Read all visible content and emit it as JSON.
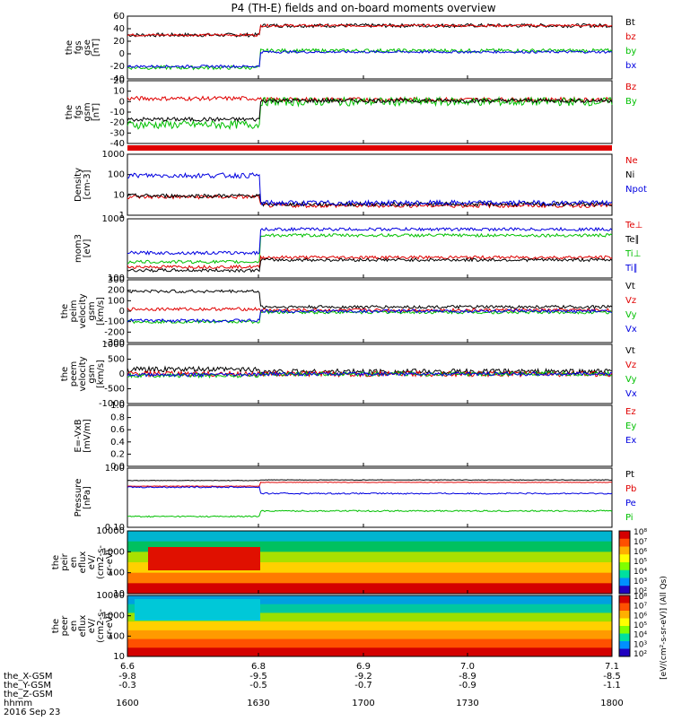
{
  "chart_data": {
    "type": "line",
    "title": "P4 (TH-E) fields and on-board moments overview",
    "panels": [
      {
        "id": "fgs1",
        "ylabel": [
          "the",
          "fgs",
          "gse",
          "[nT]"
        ],
        "yticks": [
          "60",
          "40",
          "20",
          "0",
          "-20",
          "-40"
        ],
        "yrange": [
          -40,
          60
        ],
        "kind": "line",
        "series": [
          {
            "name": "Bt",
            "color": "#000000",
            "base": 45,
            "pre": 30,
            "amp": 3
          },
          {
            "name": "bz",
            "color": "#e00000",
            "base": 45,
            "pre": 30,
            "amp": 2
          },
          {
            "name": "by",
            "color": "#00c000",
            "base": 5,
            "pre": -22,
            "amp": 3
          },
          {
            "name": "bx",
            "color": "#0000e0",
            "base": 3,
            "pre": -20,
            "amp": 2
          }
        ]
      },
      {
        "id": "fgs2",
        "ylabel": [
          "the",
          "fgs",
          "gsm",
          "[nT]"
        ],
        "yticks": [
          "20",
          "10",
          "0",
          "-10",
          "-20",
          "-30",
          "-40"
        ],
        "yrange": [
          -40,
          20
        ],
        "kind": "line",
        "series": [
          {
            "name": "Bz",
            "color": "#e00000",
            "base": 2,
            "pre": 3,
            "amp": 2
          },
          {
            "name": "By",
            "color": "#00c000",
            "base": 0,
            "pre": -22,
            "amp": 4
          },
          {
            "name": "",
            "color": "#000000",
            "base": 1,
            "pre": -17,
            "amp": 2
          }
        ]
      },
      {
        "id": "dens",
        "ylabel": [
          "Density",
          "[cm-3]"
        ],
        "yticks": [
          "1000",
          "100",
          "10",
          "1"
        ],
        "yrange": [
          1,
          1000
        ],
        "log": true,
        "kind": "line",
        "series": [
          {
            "name": "Ne",
            "color": "#e00000",
            "base": 3,
            "pre": 8,
            "amp": 0.2
          },
          {
            "name": "Ni",
            "color": "#000000",
            "base": 3.5,
            "pre": 9,
            "amp": 0.2
          },
          {
            "name": "Npot",
            "color": "#0000e0",
            "base": 4,
            "pre": 90,
            "amp": 0.25
          }
        ]
      },
      {
        "id": "temp",
        "ylabel": [
          "mom3",
          "[eV]"
        ],
        "yticks": [
          "1000",
          "100"
        ],
        "yrange": [
          40,
          3000
        ],
        "log": true,
        "kind": "line",
        "series": [
          {
            "name": "Te⊥",
            "color": "#e00000",
            "base": 180,
            "pre": 90,
            "amp": 0.1
          },
          {
            "name": "Te∥",
            "color": "#000000",
            "base": 150,
            "pre": 70,
            "amp": 0.1
          },
          {
            "name": "Ti⊥",
            "color": "#00c000",
            "base": 900,
            "pre": 130,
            "amp": 0.1
          },
          {
            "name": "Ti∥",
            "color": "#0000e0",
            "base": 1400,
            "pre": 250,
            "amp": 0.1
          }
        ]
      },
      {
        "id": "vpeim",
        "ylabel": [
          "the",
          "peim",
          "velocity",
          "gsm",
          "[km/s]"
        ],
        "yticks": [
          "300",
          "200",
          "100",
          "0",
          "-100",
          "-200",
          "-300"
        ],
        "yrange": [
          -300,
          300
        ],
        "kind": "line",
        "series": [
          {
            "name": "Vt",
            "color": "#000000",
            "base": 40,
            "pre": 190,
            "amp": 15
          },
          {
            "name": "Vz",
            "color": "#e00000",
            "base": 10,
            "pre": 20,
            "amp": 15
          },
          {
            "name": "Vy",
            "color": "#00c000",
            "base": -10,
            "pre": -100,
            "amp": 15
          },
          {
            "name": "Vx",
            "color": "#0000e0",
            "base": 0,
            "pre": -90,
            "amp": 15
          }
        ]
      },
      {
        "id": "vpeem",
        "ylabel": [
          "the",
          "peem",
          "velocity",
          "gsm",
          "[km/s]"
        ],
        "yticks": [
          "1000",
          "500",
          "0",
          "-500",
          "-1000"
        ],
        "yrange": [
          -1000,
          1000
        ],
        "kind": "line",
        "series": [
          {
            "name": "Vt",
            "color": "#000000",
            "base": 80,
            "pre": 150,
            "amp": 90
          },
          {
            "name": "Vz",
            "color": "#e00000",
            "base": 0,
            "pre": 0,
            "amp": 90
          },
          {
            "name": "Vy",
            "color": "#00c000",
            "base": 0,
            "pre": -50,
            "amp": 70
          },
          {
            "name": "Vx",
            "color": "#0000e0",
            "base": 0,
            "pre": -30,
            "amp": 60
          }
        ]
      },
      {
        "id": "efield",
        "ylabel": [
          "E=-VxB",
          "[mV/m]"
        ],
        "yticks": [
          "1.0",
          "0.8",
          "0.6",
          "0.4",
          "0.2",
          "0.0"
        ],
        "yrange": [
          0,
          1
        ],
        "kind": "empty",
        "series": [
          {
            "name": "Ez",
            "color": "#e00000"
          },
          {
            "name": "Ey",
            "color": "#00c000"
          },
          {
            "name": "Ex",
            "color": "#0000e0"
          }
        ]
      },
      {
        "id": "press",
        "ylabel": [
          "Pressure",
          "[nPa]"
        ],
        "yticks": [
          "1.00",
          "0.10"
        ],
        "yrange": [
          0.02,
          3
        ],
        "log": true,
        "kind": "line",
        "series": [
          {
            "name": "Pt",
            "color": "#000000",
            "base": 1.1,
            "pre": 1.05,
            "amp": 0.02
          },
          {
            "name": "Pb",
            "color": "#e00000",
            "base": 0.9,
            "pre": 0.65,
            "amp": 0.02
          },
          {
            "name": "Pe",
            "color": "#0000e0",
            "base": 0.35,
            "pre": 0.6,
            "amp": 0.05
          },
          {
            "name": "Pi",
            "color": "#00c000",
            "base": 0.08,
            "pre": 0.05,
            "amp": 0.05
          }
        ]
      },
      {
        "id": "peir",
        "ylabel": [
          "the",
          "peir",
          "en",
          "eflux",
          "eV/",
          "(cm2-s-",
          "sr-eV)"
        ],
        "yticks": [
          "10000",
          "1000",
          "100",
          "10"
        ],
        "yrange": [
          5,
          20000
        ],
        "kind": "spec"
      },
      {
        "id": "peer",
        "ylabel": [
          "the",
          "peer",
          "en",
          "eflux",
          "eV/",
          "(cm2-s-",
          "sr-eV)"
        ],
        "yticks": [
          "10000",
          "1000",
          "100",
          "10"
        ],
        "yrange": [
          5,
          20000
        ],
        "kind": "spec"
      }
    ],
    "xticks": [
      "6.6",
      "6.8",
      "6.9",
      "7.0",
      "7.1"
    ],
    "rows": [
      {
        "label": "the_X-GSM",
        "values": [
          "-9.8",
          "-9.5",
          "-9.2",
          "-8.9",
          "-8.5"
        ]
      },
      {
        "label": "the_Y-GSM",
        "values": [
          "-0.3",
          "-0.5",
          "-0.7",
          "-0.9",
          "-1.1"
        ]
      },
      {
        "label": "the_Z-GSM",
        "values": [
          "",
          "",
          "",
          "",
          ""
        ]
      },
      {
        "label": "hhmm",
        "values": [
          "1600",
          "1630",
          "1700",
          "1730",
          "1800"
        ]
      }
    ],
    "date": "2016 Sep 23",
    "colorbar": {
      "label": "[eV/(cm²-s-sr-eV)] (All Qs)",
      "ticks": [
        "10⁸",
        "10⁷",
        "10⁶",
        "10⁵",
        "10⁴",
        "10³",
        "10²"
      ]
    }
  }
}
